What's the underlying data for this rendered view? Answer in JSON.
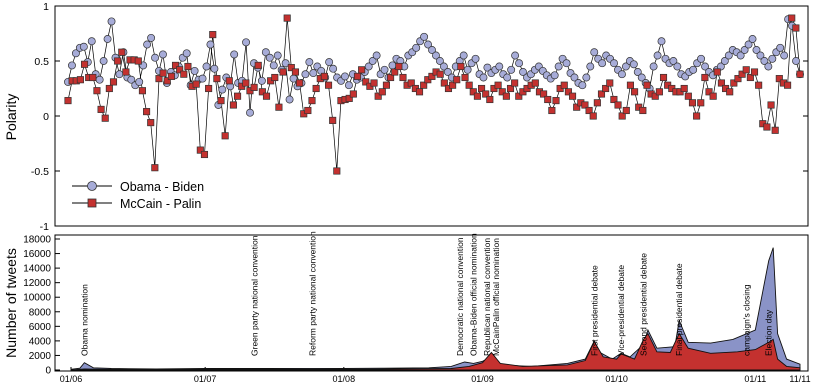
{
  "chart_data": [
    {
      "type": "line",
      "ylabel": "Polarity",
      "ylim": [
        -1,
        1
      ],
      "yticks": [
        1,
        0.5,
        0,
        -0.5,
        -1
      ],
      "ytick_labels": [
        "1",
        "0.5",
        "0",
        "-0.5",
        "-1"
      ],
      "grid": false,
      "legend_position": "lower-left",
      "series": [
        {
          "name": "Obama - Biden",
          "color": "#a7acd8",
          "marker": "circle",
          "values": [
            0.31,
            0.46,
            0.57,
            0.62,
            0.63,
            0.49,
            0.68,
            0.38,
            0.33,
            0.5,
            0.7,
            0.86,
            0.53,
            0.38,
            0.58,
            0.35,
            0.33,
            0.28,
            0.31,
            0.46,
            0.65,
            0.71,
            0.53,
            0.41,
            0.56,
            0.3,
            0.4,
            0.37,
            0.45,
            0.53,
            0.57,
            0.28,
            0.41,
            0.33,
            0.34,
            0.45,
            0.65,
            0.43,
            0.1,
            0.24,
            0.35,
            0.27,
            0.56,
            0.3,
            0.32,
            0.67,
            0.03,
            0.48,
            0.44,
            0.32,
            0.58,
            0.53,
            0.46,
            0.55,
            0.42,
            0.48,
            0.15,
            0.34,
            0.27,
            0.3,
            0.38,
            0.49,
            0.39,
            0.45,
            0.41,
            0.35,
            0.49,
            0.43,
            0.35,
            0.32,
            0.36,
            0.28,
            0.38,
            0.33,
            0.35,
            0.4,
            0.45,
            0.5,
            0.55,
            0.38,
            0.42,
            0.35,
            0.46,
            0.52,
            0.5,
            0.45,
            0.55,
            0.58,
            0.62,
            0.68,
            0.72,
            0.65,
            0.6,
            0.55,
            0.5,
            0.45,
            0.4,
            0.35,
            0.45,
            0.5,
            0.55,
            0.42,
            0.48,
            0.52,
            0.38,
            0.35,
            0.44,
            0.39,
            0.42,
            0.45,
            0.38,
            0.35,
            0.42,
            0.55,
            0.48,
            0.4,
            0.35,
            0.38,
            0.42,
            0.45,
            0.41,
            0.37,
            0.34,
            0.37,
            0.45,
            0.52,
            0.48,
            0.39,
            0.35,
            0.3,
            0.28,
            0.35,
            0.45,
            0.58,
            0.52,
            0.48,
            0.55,
            0.52,
            0.48,
            0.42,
            0.38,
            0.45,
            0.5,
            0.47,
            0.4,
            0.35,
            0.3,
            0.25,
            0.45,
            0.55,
            0.68,
            0.52,
            0.48,
            0.5,
            0.45,
            0.38,
            0.36,
            0.4,
            0.42,
            0.48,
            0.52,
            0.45,
            0.4,
            0.37,
            0.42,
            0.45,
            0.5,
            0.55,
            0.6,
            0.58,
            0.55,
            0.6,
            0.65,
            0.7,
            0.6,
            0.55,
            0.5,
            0.45,
            0.52,
            0.58,
            0.62,
            0.55,
            0.88,
            0.82,
            0.5,
            0.38
          ],
          "x_range": [
            "01/06",
            "11/11"
          ]
        },
        {
          "name": "McCain - Palin",
          "color": "#c4312f",
          "marker": "square",
          "values": [
            0.14,
            0.32,
            0.32,
            0.33,
            0.47,
            0.35,
            0.35,
            0.23,
            0.06,
            -0.02,
            0.25,
            0.31,
            0.5,
            0.58,
            0.4,
            0.51,
            0.51,
            0.5,
            0.23,
            0.04,
            -0.06,
            -0.47,
            0.34,
            0.39,
            0.32,
            0.36,
            0.46,
            0.42,
            0.38,
            0.45,
            0.27,
            0.29,
            -0.31,
            -0.35,
            0.25,
            0.74,
            0.34,
            0.14,
            -0.18,
            0.32,
            0.1,
            0.18,
            0.27,
            0.3,
            0.23,
            0.26,
            0.46,
            0.22,
            0.18,
            0.32,
            0.35,
            0.08,
            0.4,
            0.89,
            0.44,
            0.4,
            0.3,
            0.02,
            0.05,
            0.14,
            0.25,
            0.34,
            0.36,
            0.28,
            -0.04,
            -0.5,
            0.14,
            0.15,
            0.16,
            0.2,
            0.36,
            0.42,
            0.31,
            0.27,
            0.3,
            0.18,
            0.22,
            0.28,
            0.35,
            0.4,
            0.45,
            0.35,
            0.28,
            0.3,
            0.25,
            0.22,
            0.28,
            0.33,
            0.36,
            0.4,
            0.38,
            0.3,
            0.25,
            0.28,
            0.33,
            0.45,
            0.35,
            0.28,
            0.22,
            0.18,
            0.25,
            0.2,
            0.15,
            0.25,
            0.28,
            0.22,
            0.18,
            0.25,
            0.3,
            0.18,
            0.22,
            0.25,
            0.28,
            0.3,
            0.22,
            0.2,
            0.15,
            0.05,
            0.14,
            0.25,
            0.28,
            0.22,
            0.18,
            0.08,
            0.12,
            0.1,
            0.05,
            0.0,
            0.12,
            0.2,
            0.25,
            0.3,
            0.15,
            0.1,
            0.0,
            0.05,
            0.28,
            0.22,
            0.08,
            0.05,
            0.28,
            0.2,
            0.18,
            0.22,
            0.35,
            0.28,
            0.25,
            0.22,
            0.22,
            0.25,
            0.18,
            0.12,
            0.0,
            0.12,
            0.35,
            0.22,
            0.18,
            0.4,
            0.3,
            0.25,
            0.22,
            0.3,
            0.34,
            0.38,
            0.42,
            0.35,
            0.4,
            0.28,
            -0.07,
            -0.1,
            0.1,
            -0.13,
            0.34,
            0.3,
            0.28,
            0.89,
            0.8,
            0.38
          ],
          "x_range": [
            "01/06",
            "11/11"
          ]
        }
      ]
    },
    {
      "type": "area",
      "ylabel": "Number of tweets",
      "ylim": [
        0,
        18000
      ],
      "yticks": [
        0,
        2000,
        4000,
        6000,
        8000,
        10000,
        12000,
        14000,
        16000,
        18000
      ],
      "ytick_labels": [
        "0",
        "2000",
        "4000",
        "6000",
        "8000",
        "10000",
        "12000",
        "14000",
        "16000",
        "18000"
      ],
      "xticks": [
        "01/06",
        "01/07",
        "01/08",
        "01/09",
        "01/10",
        "01/11",
        "11/11"
      ],
      "x_range": [
        "2008-06-01",
        "2008-11-11"
      ],
      "grid": false,
      "series": [
        {
          "color": "#8a93c7",
          "points": [
            [
              "2008-06-01",
              100
            ],
            [
              "2008-06-03",
              250
            ],
            [
              "2008-06-04",
              1000
            ],
            [
              "2008-06-06",
              300
            ],
            [
              "2008-06-10",
              200
            ],
            [
              "2008-06-20",
              150
            ],
            [
              "2008-07-01",
              200
            ],
            [
              "2008-07-15",
              200
            ],
            [
              "2008-07-25",
              220
            ],
            [
              "2008-08-01",
              200
            ],
            [
              "2008-08-10",
              250
            ],
            [
              "2008-08-20",
              300
            ],
            [
              "2008-08-25",
              500
            ],
            [
              "2008-08-28",
              1100
            ],
            [
              "2008-08-30",
              900
            ],
            [
              "2008-09-01",
              1200
            ],
            [
              "2008-09-03",
              1800
            ],
            [
              "2008-09-05",
              800
            ],
            [
              "2008-09-08",
              600
            ],
            [
              "2008-09-12",
              500
            ],
            [
              "2008-09-20",
              900
            ],
            [
              "2008-09-24",
              1500
            ],
            [
              "2008-09-26",
              4000
            ],
            [
              "2008-09-27",
              2500
            ],
            [
              "2008-09-30",
              1500
            ],
            [
              "2008-10-02",
              2300
            ],
            [
              "2008-10-04",
              1800
            ],
            [
              "2008-10-07",
              3500
            ],
            [
              "2008-10-08",
              5500
            ],
            [
              "2008-10-10",
              3000
            ],
            [
              "2008-10-14",
              3200
            ],
            [
              "2008-10-15",
              6800
            ],
            [
              "2008-10-17",
              3800
            ],
            [
              "2008-10-22",
              3700
            ],
            [
              "2008-10-27",
              4200
            ],
            [
              "2008-11-01",
              5500
            ],
            [
              "2008-11-04",
              15000
            ],
            [
              "2008-11-05",
              16800
            ],
            [
              "2008-11-06",
              5000
            ],
            [
              "2008-11-08",
              1500
            ],
            [
              "2008-11-11",
              800
            ]
          ]
        },
        {
          "color": "#c4312f",
          "points": [
            [
              "2008-06-01",
              0
            ],
            [
              "2008-06-04",
              150
            ],
            [
              "2008-06-10",
              80
            ],
            [
              "2008-07-01",
              80
            ],
            [
              "2008-08-01",
              90
            ],
            [
              "2008-08-25",
              200
            ],
            [
              "2008-08-29",
              500
            ],
            [
              "2008-09-01",
              1000
            ],
            [
              "2008-09-03",
              2400
            ],
            [
              "2008-09-05",
              900
            ],
            [
              "2008-09-10",
              500
            ],
            [
              "2008-09-20",
              700
            ],
            [
              "2008-09-24",
              1300
            ],
            [
              "2008-09-26",
              3900
            ],
            [
              "2008-09-28",
              1800
            ],
            [
              "2008-10-01",
              1500
            ],
            [
              "2008-10-02",
              2200
            ],
            [
              "2008-10-05",
              1500
            ],
            [
              "2008-10-07",
              4200
            ],
            [
              "2008-10-08",
              5000
            ],
            [
              "2008-10-10",
              2500
            ],
            [
              "2008-10-13",
              2400
            ],
            [
              "2008-10-15",
              5000
            ],
            [
              "2008-10-17",
              3000
            ],
            [
              "2008-10-22",
              2300
            ],
            [
              "2008-10-28",
              2500
            ],
            [
              "2008-11-01",
              2800
            ],
            [
              "2008-11-04",
              3800
            ],
            [
              "2008-11-05",
              4200
            ],
            [
              "2008-11-06",
              1500
            ],
            [
              "2008-11-08",
              500
            ],
            [
              "2008-11-11",
              300
            ]
          ]
        }
      ],
      "annotations": [
        {
          "date": "2008-06-04",
          "text": "Obama nomination"
        },
        {
          "date": "2008-07-12",
          "text": "Green party national convention"
        },
        {
          "date": "2008-07-25",
          "text": "Reform party national convention"
        },
        {
          "date": "2008-08-27",
          "text": "Democratic national convention"
        },
        {
          "date": "2008-08-30",
          "text": "Obama-Biden official nomination"
        },
        {
          "date": "2008-09-02",
          "text": "Republican national convention"
        },
        {
          "date": "2008-09-04",
          "text": "McCainPalin official nomination"
        },
        {
          "date": "2008-09-26",
          "text": "First presidential debate"
        },
        {
          "date": "2008-10-02",
          "text": "Vice-presidential debate"
        },
        {
          "date": "2008-10-07",
          "text": "Second presidential debate"
        },
        {
          "date": "2008-10-15",
          "text": "Final presidential debate"
        },
        {
          "date": "2008-10-30",
          "text": "campaign's closing"
        },
        {
          "date": "2008-11-04",
          "text": "Election day"
        }
      ]
    }
  ]
}
